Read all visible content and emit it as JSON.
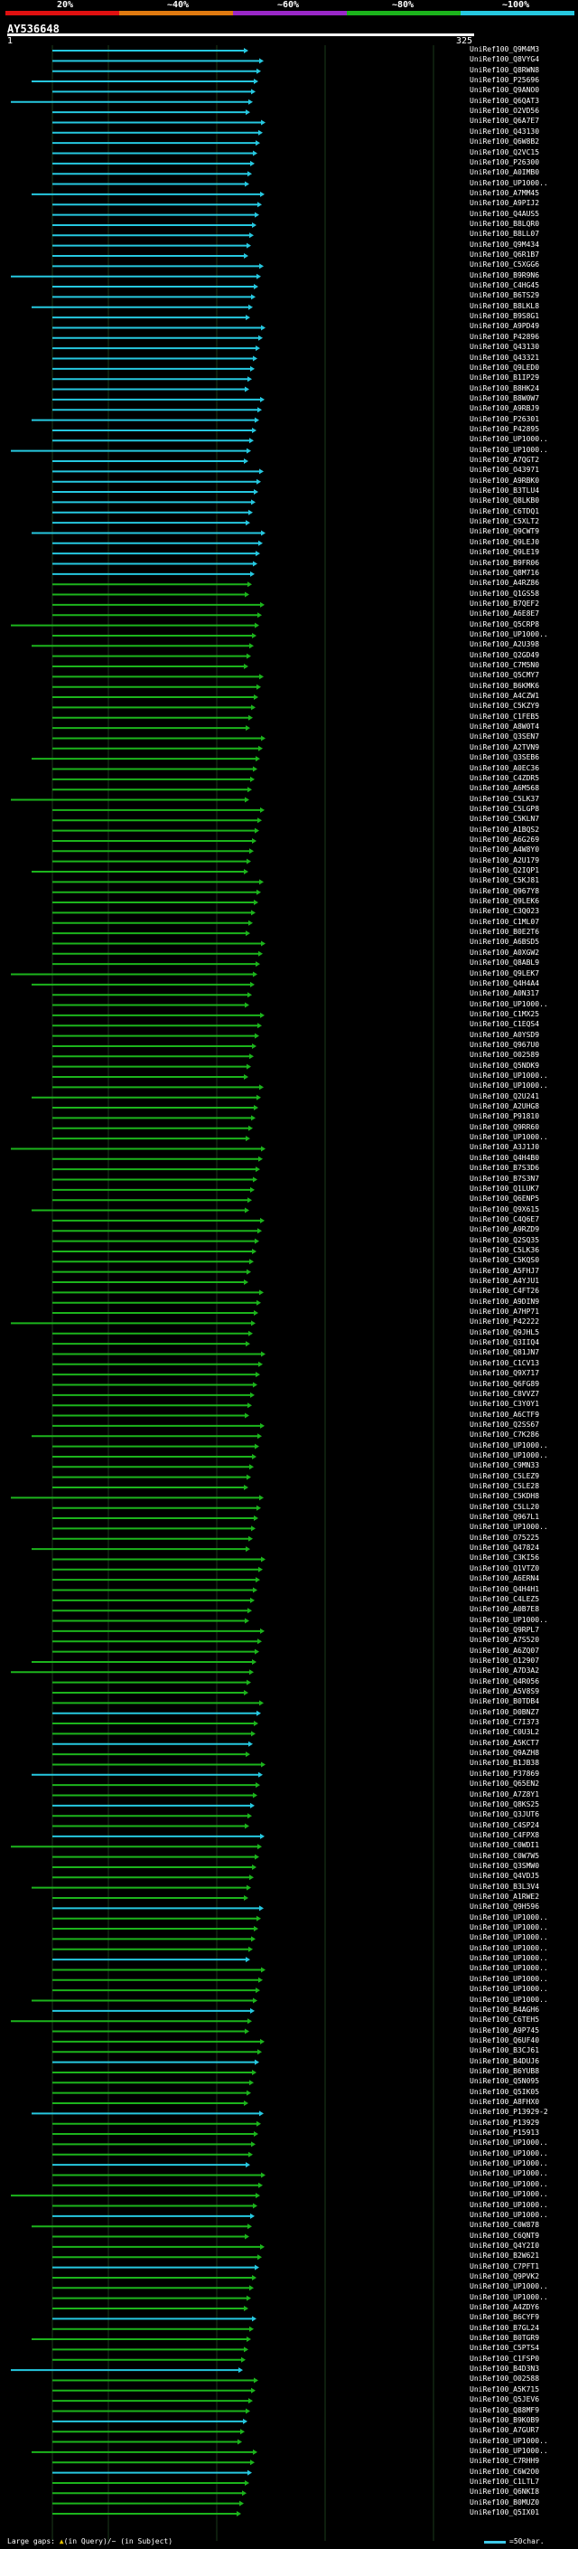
{
  "scale": {
    "labels": [
      "20%",
      "~40%",
      "~60%",
      "~80%",
      "~100%"
    ],
    "colors": [
      "#e01010",
      "#e07a10",
      "#9a28c8",
      "#1cb41c",
      "#26c8e0"
    ]
  },
  "query": {
    "title": "AY536648",
    "start": "1",
    "end": "325"
  },
  "legend": {
    "text": "Large gaps: ",
    "in_query": "(in Query)",
    "sep": "/",
    "in_subject": "~ (in Subject)",
    "scale_note": "=50char."
  },
  "hits": [
    "UniRef100_Q9M4M3",
    "UniRef100_Q8VYG4",
    "UniRef100_Q8RWN8",
    "UniRef100_P25696",
    "UniRef100_Q9ANO0",
    "UniRef100_Q6QAT3",
    "UniRef100_O2VD56",
    "UniRef100_Q6A7E7",
    "UniRef100_Q43130",
    "UniRef100_Q6W8B2",
    "UniRef100_Q2VC15",
    "UniRef100_P26300",
    "UniRef100_A0IMB0",
    "UniRef100_UP1000..",
    "UniRef100_A7MM45",
    "UniRef100_A9PIJ2",
    "UniRef100_Q4AUS5",
    "UniRef100_B8LQR0",
    "UniRef100_B8LL07",
    "UniRef100_Q9M434",
    "UniRef100_Q6R1B7",
    "UniRef100_C5XGG6",
    "UniRef100_B9R9N6",
    "UniRef100_C4HG45",
    "UniRef100_B6TS29",
    "UniRef100_B8LKL8",
    "UniRef100_B9S8G1",
    "UniRef100_A9PD49",
    "UniRef100_P42896",
    "UniRef100_Q43130",
    "UniRef100_Q43321",
    "UniRef100_Q9LED0",
    "UniRef100_B1IP29",
    "UniRef100_B8HK24",
    "UniRef100_B8W0W7",
    "UniRef100_A9RBJ9",
    "UniRef100_P26301",
    "UniRef100_P42895",
    "UniRef100_UP1000..",
    "UniRef100_UP1000..",
    "UniRef100_A7QGT2",
    "UniRef100_O43971",
    "UniRef100_A9RBK0",
    "UniRef100_B3TLU4",
    "UniRef100_Q8LKB0",
    "UniRef100_C6TDQ1",
    "UniRef100_C5XLT2",
    "UniRef100_Q9CWT9",
    "UniRef100_Q9LEJ0",
    "UniRef100_Q9LE19",
    "UniRef100_B9FR06",
    "UniRef100_Q8M716",
    "UniRef100_A4RZ86",
    "UniRef100_Q1GS58",
    "UniRef100_B7QEF2",
    "UniRef100_A6E8E7",
    "UniRef100_Q5CRP8",
    "UniRef100_UP1000..",
    "UniRef100_A2U398",
    "UniRef100_Q2GD49",
    "UniRef100_C7M5N0",
    "UniRef100_Q5CMY7",
    "UniRef100_B6KMK6",
    "UniRef100_A4CZW1",
    "UniRef100_C5KZY9",
    "UniRef100_C1FEB5",
    "UniRef100_A8W0T4",
    "UniRef100_Q3SEN7",
    "UniRef100_A2TVN9",
    "UniRef100_Q3SEB6",
    "UniRef100_A0EC36",
    "UniRef100_C4ZDR5",
    "UniRef100_A6M568",
    "UniRef100_C5LK37",
    "UniRef100_C5LGP8",
    "UniRef100_C5KLN7",
    "UniRef100_A1BQS2",
    "UniRef100_A6G269",
    "UniRef100_A4W8Y0",
    "UniRef100_A2U179",
    "UniRef100_Q2IQP1",
    "UniRef100_C5KJ81",
    "UniRef100_Q967Y8",
    "UniRef100_Q9LEK6",
    "UniRef100_C3Q023",
    "UniRef100_C1ML07",
    "UniRef100_B0E2T6",
    "UniRef100_A6BSD5",
    "UniRef100_A0XGW2",
    "UniRef100_Q8ABL9",
    "UniRef100_Q9LEK7",
    "UniRef100_Q4H4A4",
    "UniRef100_A0N317",
    "UniRef100_UP1000..",
    "UniRef100_C1MX25",
    "UniRef100_C1EQS4",
    "UniRef100_A0YSD9",
    "UniRef100_Q967U0",
    "UniRef100_O02589",
    "UniRef100_Q5NDK9",
    "UniRef100_UP1000..",
    "UniRef100_UP1000..",
    "UniRef100_Q2U241",
    "UniRef100_A2UHG8",
    "UniRef100_P91810",
    "UniRef100_Q9RR60",
    "UniRef100_UP1000..",
    "UniRef100_A3J1J0",
    "UniRef100_Q4H4B0",
    "UniRef100_B7S3D6",
    "UniRef100_B7S3N7",
    "UniRef100_Q1LUK7",
    "UniRef100_Q6ENP5",
    "UniRef100_Q9X615",
    "UniRef100_C4Q6E7",
    "UniRef100_A9RZD9",
    "UniRef100_Q2SQ35",
    "UniRef100_C5LK36",
    "UniRef100_C5KQS0",
    "UniRef100_A5FHJ7",
    "UniRef100_A4YJU1",
    "UniRef100_C4FT26",
    "UniRef100_A9DIN9",
    "UniRef100_A7HP71",
    "UniRef100_P42222",
    "UniRef100_Q9JHL5",
    "UniRef100_Q3IIQ4",
    "UniRef100_Q81JN7",
    "UniRef100_C1CV13",
    "UniRef100_Q9X717",
    "UniRef100_Q6FG89",
    "UniRef100_C8VVZ7",
    "UniRef100_C3Y0Y1",
    "UniRef100_A6CTF9",
    "UniRef100_Q2SS67",
    "UniRef100_C7K286",
    "UniRef100_UP1000..",
    "UniRef100_UP1000..",
    "UniRef100_C9MN33",
    "UniRef100_C5LEZ9",
    "UniRef100_C5LE28",
    "UniRef100_C5KDH8",
    "UniRef100_C5LL20",
    "UniRef100_Q967L1",
    "UniRef100_UP1000..",
    "UniRef100_O75225",
    "UniRef100_Q47824",
    "UniRef100_C3KI56",
    "UniRef100_Q1VTZ0",
    "UniRef100_A6ERN4",
    "UniRef100_Q4H4H1",
    "UniRef100_C4LEZ5",
    "UniRef100_A0B7E8",
    "UniRef100_UP1000..",
    "UniRef100_Q9RPL7",
    "UniRef100_A7S520",
    "UniRef100_A6ZQ07",
    "UniRef100_O12907",
    "UniRef100_A7D3A2",
    "UniRef100_Q4R056",
    "UniRef100_A5V8S9",
    "UniRef100_B0TDB4",
    "UniRef100_D0BNZ7",
    "UniRef100_C7I373",
    "UniRef100_C0U3L2",
    "UniRef100_A5KCT7",
    "UniRef100_Q9AZH8",
    "UniRef100_B1JB38",
    "UniRef100_P37869",
    "UniRef100_Q65EN2",
    "UniRef100_A7Z8Y1",
    "UniRef100_Q8KS25",
    "UniRef100_Q3JUT6",
    "UniRef100_C4SP24",
    "UniRef100_C4FPX8",
    "UniRef100_C0WDI1",
    "UniRef100_C0W7W5",
    "UniRef100_Q3SMW0",
    "UniRef100_Q4VDJ5",
    "UniRef100_B3L3V4",
    "UniRef100_A1RWE2",
    "UniRef100_Q9H596",
    "UniRef100_UP1000..",
    "UniRef100_UP1000..",
    "UniRef100_UP1000..",
    "UniRef100_UP1000..",
    "UniRef100_UP1000..",
    "UniRef100_UP1000..",
    "UniRef100_UP1000..",
    "UniRef100_UP1000..",
    "UniRef100_UP1000..",
    "UniRef100_B4AGH6",
    "UniRef100_C6TEH5",
    "UniRef100_A9P745",
    "UniRef100_Q6UF40",
    "UniRef100_B3CJ61",
    "UniRef100_B4DUJ6",
    "UniRef100_B6YUB8",
    "UniRef100_Q5N095",
    "UniRef100_Q5IK05",
    "UniRef100_A8FHX0",
    "UniRef100_P13929-2",
    "UniRef100_P13929",
    "UniRef100_P15913",
    "UniRef100_UP1000..",
    "UniRef100_UP1000..",
    "UniRef100_UP1000..",
    "UniRef100_UP1000..",
    "UniRef100_UP1000..",
    "UniRef100_UP1000..",
    "UniRef100_UP1000..",
    "UniRef100_UP1000..",
    "UniRef100_C0W878",
    "UniRef100_C6QNT9",
    "UniRef100_Q4Y2I0",
    "UniRef100_B2W621",
    "UniRef100_C7PFT1",
    "UniRef100_Q9PVK2",
    "UniRef100_UP1000..",
    "UniRef100_UP1000..",
    "UniRef100_A4ZDY6",
    "UniRef100_B6CYF9",
    "UniRef100_B7GL24",
    "UniRef100_B0TGR9",
    "UniRef100_C5PTS4",
    "UniRef100_C1FSP0",
    "UniRef100_B4D3N3",
    "UniRef100_O02588",
    "UniRef100_A5K715",
    "UniRef100_Q5JEV6",
    "UniRef100_Q88MF9",
    "UniRef100_B9K0B9",
    "UniRef100_A7GUR7",
    "UniRef100_UP1000..",
    "UniRef100_UP1000..",
    "UniRef100_C7RHH9",
    "UniRef100_C6W2O0",
    "UniRef100_C1LTL7",
    "UniRef100_Q6NKI8",
    "UniRef100_B0MUZ0",
    "UniRef100_Q5IX01"
  ]
}
